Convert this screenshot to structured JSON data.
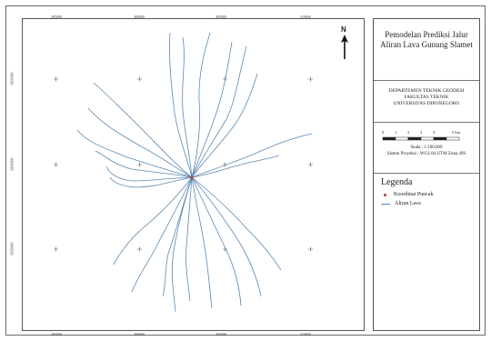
{
  "map": {
    "x_ticks": [
      "295000",
      "300000",
      "305000",
      "310000"
    ],
    "y_ticks_left": [
      "9205000",
      "9200000",
      "9195000"
    ],
    "y_ticks_right": [
      "9205000",
      "9200000",
      "9195000"
    ]
  },
  "panel": {
    "title": "Pemodelan Prediksi Jalur Aliran Lava Gunung Slamet",
    "institution": [
      "DEPARTEMEN TEKNIK GEODESI",
      "FAKULTAS TEKNIK",
      "UNIVERSITAS DIPONEGORO"
    ],
    "north_label": "N",
    "scale": {
      "labels": [
        "0",
        "1",
        "2",
        "3",
        "4",
        "5 km"
      ],
      "scale_text": "Skala : 1:100.000",
      "projection": "Sistem Proyeksi : WGS 84 UTM Zona 49S"
    },
    "legend": {
      "title": "Legenda",
      "items": [
        {
          "label": "Koordinat Puncak",
          "color": "#c0392b",
          "symbol": "point"
        },
        {
          "label": "Aliran Lava",
          "color": "#5b88b3",
          "symbol": "line"
        }
      ]
    }
  }
}
